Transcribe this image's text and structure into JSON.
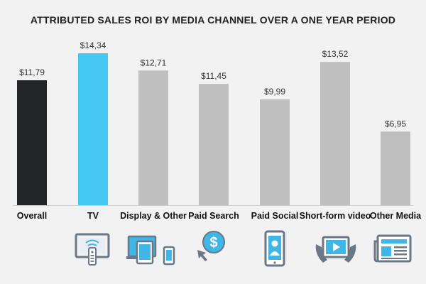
{
  "chart_data": {
    "type": "bar",
    "title": "ATTRIBUTED SALES ROI BY MEDIA CHANNEL OVER A ONE YEAR PERIOD",
    "xlabel": "",
    "ylabel": "",
    "ylim": [
      0,
      15
    ],
    "grid": false,
    "categories": [
      "Overall",
      "TV",
      "Display & Other",
      "Paid Search",
      "Paid Social",
      "Short-form video",
      "Other Media"
    ],
    "values": [
      11.79,
      14.34,
      12.71,
      11.45,
      9.99,
      13.52,
      6.95
    ],
    "data_labels": [
      "$11,79",
      "$14,34",
      "$12,71",
      "$11,45",
      "$9,99",
      "$13,52",
      "$6,95"
    ],
    "icons": [
      "bars-icon",
      "tv-remote-icon",
      "devices-icon",
      "search-dollar-icon",
      "smartphone-profile-icon",
      "tablet-video-icon",
      "newspaper-icon"
    ]
  },
  "colors": {
    "overall": "#232428",
    "highlight": "#45c8f4",
    "default": "#bfbfbf",
    "icon": "#6b7785",
    "icon_accent": "#3fb6e6",
    "background": "#f2f2f2"
  }
}
